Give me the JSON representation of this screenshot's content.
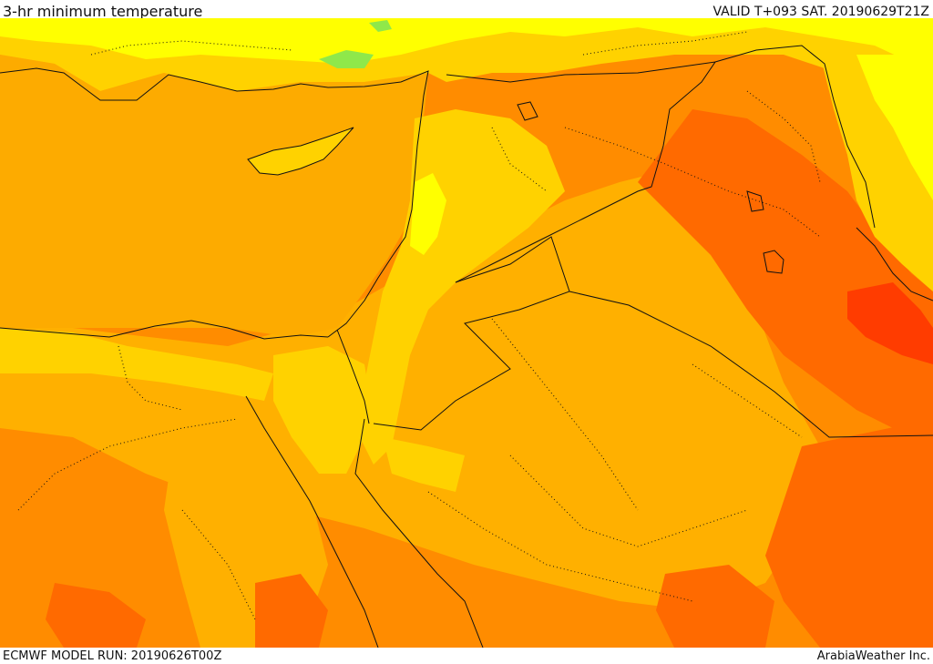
{
  "header": {
    "title": "3-hr minimum temperature",
    "valid": "VALID T+093 SAT. 20190629T21Z"
  },
  "footer": {
    "model_run": "ECMWF MODEL RUN: 20190626T00Z",
    "credit": "ArabiaWeather Inc."
  },
  "map": {
    "region": "Eastern Mediterranean and Middle East",
    "colors": {
      "sea": "#fdab00",
      "yellow": "#ffff00",
      "green": "#8fe84a",
      "gold": "#ffd200",
      "orange_light": "#ffb000",
      "orange": "#ff8c00",
      "orange_dark": "#ff6a00",
      "red": "#ff3c00",
      "border": "#111111"
    }
  }
}
